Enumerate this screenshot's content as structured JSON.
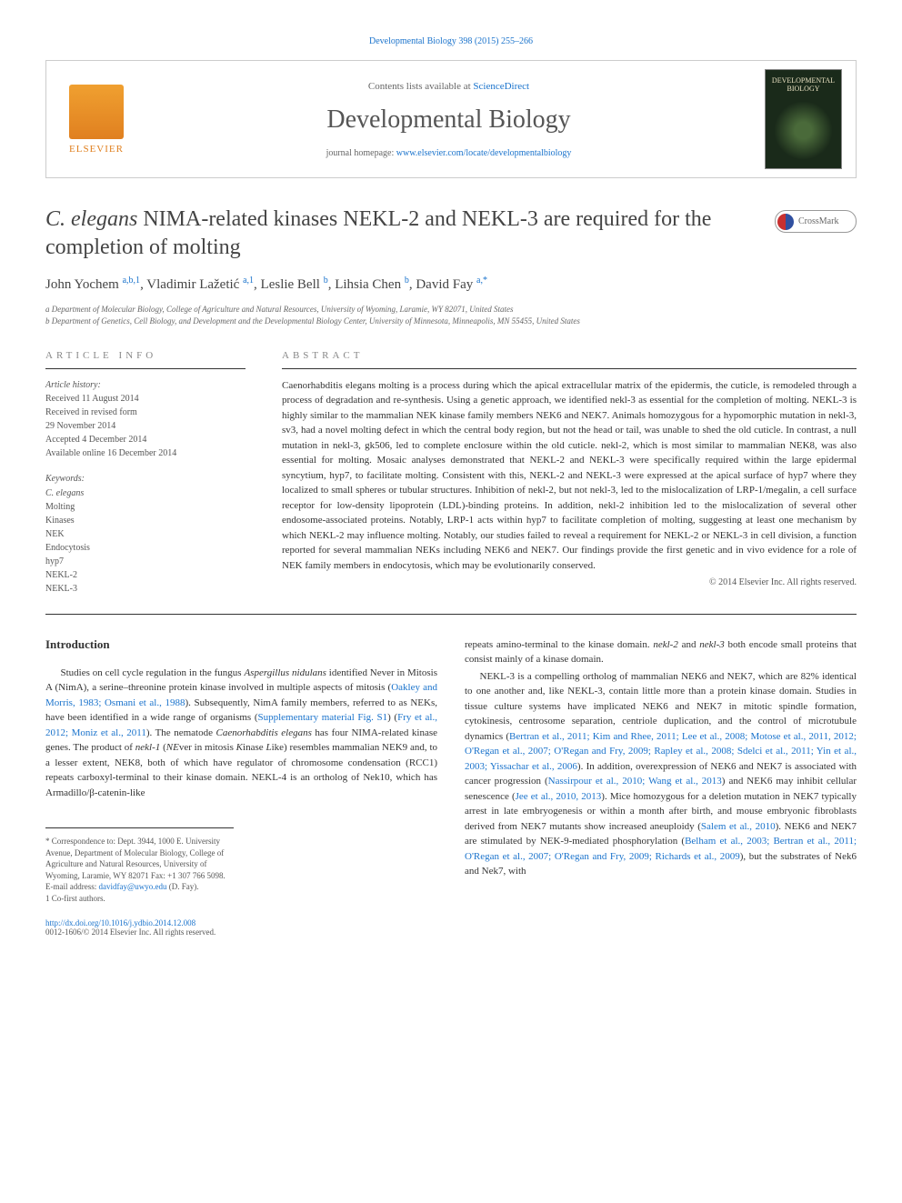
{
  "top_link": "Developmental Biology 398 (2015) 255–266",
  "header": {
    "contents_prefix": "Contents lists available at ",
    "contents_link": "ScienceDirect",
    "journal_name": "Developmental Biology",
    "homepage_prefix": "journal homepage: ",
    "homepage_link": "www.elsevier.com/locate/developmentalbiology",
    "elsevier_label": "ELSEVIER",
    "cover_title": "DEVELOPMENTAL BIOLOGY"
  },
  "crossmark": "CrossMark",
  "title_prefix_italic": "C. elegans",
  "title_rest": " NIMA-related kinases NEKL-2 and NEKL-3 are required for the completion of molting",
  "authors_html": "John Yochem <a>a,b,1</a>, Vladimir Lažetić <a>a,1</a>, Leslie Bell <a>b</a>, Lihsia Chen <a>b</a>, David Fay <a>a,*</a>",
  "affiliations": [
    "a Department of Molecular Biology, College of Agriculture and Natural Resources, University of Wyoming, Laramie, WY 82071, United States",
    "b Department of Genetics, Cell Biology, and Development and the Developmental Biology Center, University of Minnesota, Minneapolis, MN 55455, United States"
  ],
  "article_info_label": "ARTICLE INFO",
  "abstract_label": "ABSTRACT",
  "history_label": "Article history:",
  "history": [
    "Received 11 August 2014",
    "Received in revised form",
    "29 November 2014",
    "Accepted 4 December 2014",
    "Available online 16 December 2014"
  ],
  "keywords_label": "Keywords:",
  "keywords": [
    "C. elegans",
    "Molting",
    "Kinases",
    "NEK",
    "Endocytosis",
    "hyp7",
    "NEKL-2",
    "NEKL-3"
  ],
  "abstract": "Caenorhabditis elegans molting is a process during which the apical extracellular matrix of the epidermis, the cuticle, is remodeled through a process of degradation and re-synthesis. Using a genetic approach, we identified nekl-3 as essential for the completion of molting. NEKL-3 is highly similar to the mammalian NEK kinase family members NEK6 and NEK7. Animals homozygous for a hypomorphic mutation in nekl-3, sv3, had a novel molting defect in which the central body region, but not the head or tail, was unable to shed the old cuticle. In contrast, a null mutation in nekl-3, gk506, led to complete enclosure within the old cuticle. nekl-2, which is most similar to mammalian NEK8, was also essential for molting. Mosaic analyses demonstrated that NEKL-2 and NEKL-3 were specifically required within the large epidermal syncytium, hyp7, to facilitate molting. Consistent with this, NEKL-2 and NEKL-3 were expressed at the apical surface of hyp7 where they localized to small spheres or tubular structures. Inhibition of nekl-2, but not nekl-3, led to the mislocalization of LRP-1/megalin, a cell surface receptor for low-density lipoprotein (LDL)-binding proteins. In addition, nekl-2 inhibition led to the mislocalization of several other endosome-associated proteins. Notably, LRP-1 acts within hyp7 to facilitate completion of molting, suggesting at least one mechanism by which NEKL-2 may influence molting. Notably, our studies failed to reveal a requirement for NEKL-2 or NEKL-3 in cell division, a function reported for several mammalian NEKs including NEK6 and NEK7. Our findings provide the first genetic and in vivo evidence for a role of NEK family members in endocytosis, which may be evolutionarily conserved.",
  "copyright": "© 2014 Elsevier Inc. All rights reserved.",
  "intro_heading": "Introduction",
  "intro_col1_p1": "Studies on cell cycle regulation in the fungus Aspergillus nidulans identified Never in Mitosis A (NimA), a serine–threonine protein kinase involved in multiple aspects of mitosis (Oakley and Morris, 1983; Osmani et al., 1988). Subsequently, NimA family members, referred to as NEKs, have been identified in a wide range of organisms (Supplementary material Fig. S1) (Fry et al., 2012; Moniz et al., 2011). The nematode Caenorhabditis elegans has four NIMA-related kinase genes. The product of nekl-1 (NEver in mitosis Kinase Like) resembles mammalian NEK9 and, to a lesser extent, NEK8, both of which have regulator of chromosome condensation (RCC1) repeats carboxyl-terminal to their kinase domain. NEKL-4 is an ortholog of Nek10, which has Armadillo/β-catenin-like",
  "intro_col2_p1": "repeats amino-terminal to the kinase domain. nekl-2 and nekl-3 both encode small proteins that consist mainly of a kinase domain.",
  "intro_col2_p2": "NEKL-3 is a compelling ortholog of mammalian NEK6 and NEK7, which are 82% identical to one another and, like NEKL-3, contain little more than a protein kinase domain. Studies in tissue culture systems have implicated NEK6 and NEK7 in mitotic spindle formation, cytokinesis, centrosome separation, centriole duplication, and the control of microtubule dynamics (Bertran et al., 2011; Kim and Rhee, 2011; Lee et al., 2008; Motose et al., 2011, 2012; O'Regan et al., 2007; O'Regan and Fry, 2009; Rapley et al., 2008; Sdelci et al., 2011; Yin et al., 2003; Yissachar et al., 2006). In addition, overexpression of NEK6 and NEK7 is associated with cancer progression (Nassirpour et al., 2010; Wang et al., 2013) and NEK6 may inhibit cellular senescence (Jee et al., 2010, 2013). Mice homozygous for a deletion mutation in NEK7 typically arrest in late embryogenesis or within a month after birth, and mouse embryonic fibroblasts derived from NEK7 mutants show increased aneuploidy (Salem et al., 2010). NEK6 and NEK7 are stimulated by NEK-9-mediated phosphorylation (Belham et al., 2003; Bertran et al., 2011; O'Regan et al., 2007; O'Regan and Fry, 2009; Richards et al., 2009), but the substrates of Nek6 and Nek7, with",
  "footnotes": {
    "corr": "* Correspondence to: Dept. 3944, 1000 E. University Avenue, Department of Molecular Biology, College of Agriculture and Natural Resources, University of Wyoming, Laramie, WY 82071 Fax: +1 307 766 5098.",
    "email_label": "E-mail address: ",
    "email": "davidfay@uwyo.edu",
    "email_suffix": " (D. Fay).",
    "cofirst": "1 Co-first authors."
  },
  "doi": {
    "link": "http://dx.doi.org/10.1016/j.ydbio.2014.12.008",
    "issn": "0012-1606/© 2014 Elsevier Inc. All rights reserved."
  },
  "colors": {
    "link": "#1a73cc",
    "text": "#333333",
    "muted": "#666666",
    "border": "#cccccc"
  }
}
